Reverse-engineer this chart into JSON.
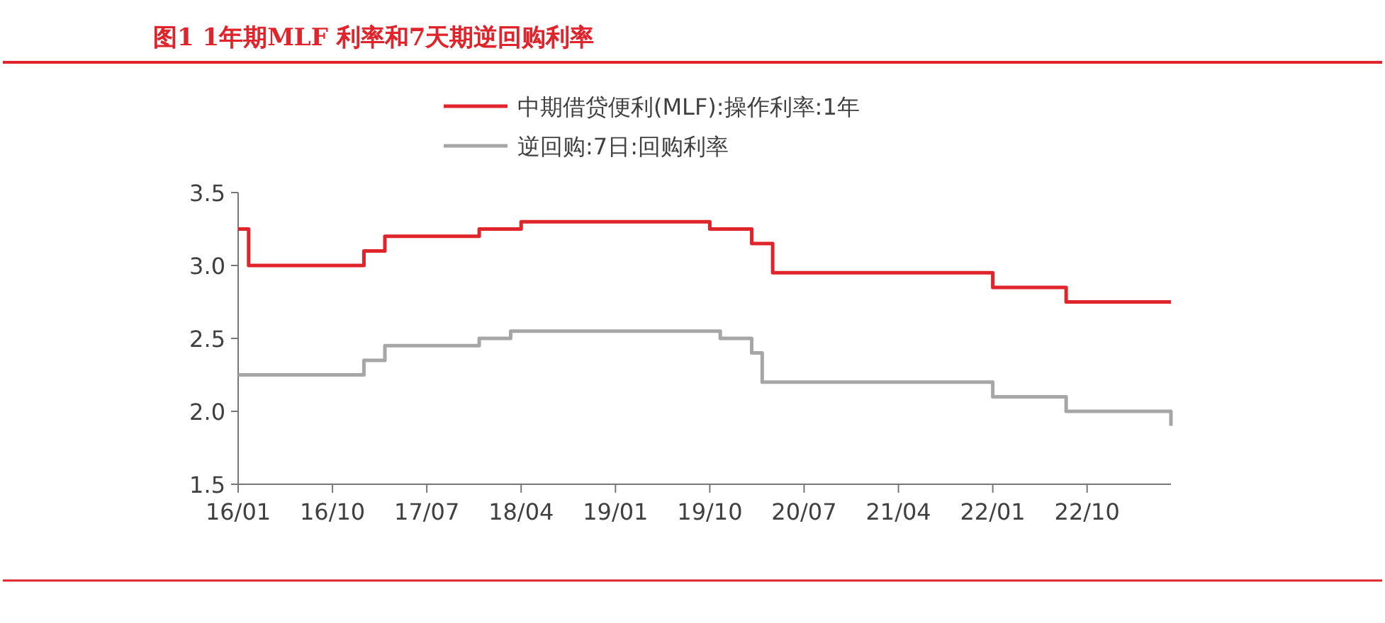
{
  "chart_data": {
    "type": "step",
    "title": "图1  1年期MLF 利率和7天期逆回购利率",
    "categories": [
      "16/01",
      null,
      null,
      null,
      null,
      null,
      null,
      null,
      null,
      "16/10",
      null,
      null,
      null,
      null,
      null,
      null,
      null,
      null,
      "17/07",
      null,
      null,
      null,
      null,
      null,
      null,
      null,
      null,
      "18/04",
      null,
      null,
      null,
      null,
      null,
      null,
      null,
      null,
      "19/01",
      null,
      null,
      null,
      null,
      null,
      null,
      null,
      null,
      "19/10",
      null,
      null,
      null,
      null,
      null,
      null,
      null,
      null,
      "20/07",
      null,
      null,
      null,
      null,
      null,
      null,
      null,
      null,
      "21/04",
      null,
      null,
      null,
      null,
      null,
      null,
      null,
      null,
      "22/01",
      null,
      null,
      null,
      null,
      null,
      null,
      null,
      null,
      "22/10",
      null,
      null,
      null,
      null,
      null,
      null,
      null,
      null
    ],
    "series": [
      {
        "name": "中期借贷便利(MLF):操作利率:1年",
        "color": "#e0242b",
        "values": [
          3.25,
          3.0,
          3.0,
          3.0,
          3.0,
          3.0,
          3.0,
          3.0,
          3.0,
          3.0,
          3.0,
          3.0,
          3.1,
          3.1,
          3.2,
          3.2,
          3.2,
          3.2,
          3.2,
          3.2,
          3.2,
          3.2,
          3.2,
          3.25,
          3.25,
          3.25,
          3.25,
          3.3,
          3.3,
          3.3,
          3.3,
          3.3,
          3.3,
          3.3,
          3.3,
          3.3,
          3.3,
          3.3,
          3.3,
          3.3,
          3.3,
          3.3,
          3.3,
          3.3,
          3.3,
          3.25,
          3.25,
          3.25,
          3.25,
          3.15,
          3.15,
          2.95,
          2.95,
          2.95,
          2.95,
          2.95,
          2.95,
          2.95,
          2.95,
          2.95,
          2.95,
          2.95,
          2.95,
          2.95,
          2.95,
          2.95,
          2.95,
          2.95,
          2.95,
          2.95,
          2.95,
          2.95,
          2.85,
          2.85,
          2.85,
          2.85,
          2.85,
          2.85,
          2.85,
          2.75,
          2.75,
          2.75,
          2.75,
          2.75,
          2.75,
          2.75,
          2.75,
          2.75,
          2.75,
          2.75
        ]
      },
      {
        "name": "逆回购:7日:回购利率",
        "color": "#a6a6a6",
        "values": [
          2.25,
          2.25,
          2.25,
          2.25,
          2.25,
          2.25,
          2.25,
          2.25,
          2.25,
          2.25,
          2.25,
          2.25,
          2.35,
          2.35,
          2.45,
          2.45,
          2.45,
          2.45,
          2.45,
          2.45,
          2.45,
          2.45,
          2.45,
          2.5,
          2.5,
          2.5,
          2.55,
          2.55,
          2.55,
          2.55,
          2.55,
          2.55,
          2.55,
          2.55,
          2.55,
          2.55,
          2.55,
          2.55,
          2.55,
          2.55,
          2.55,
          2.55,
          2.55,
          2.55,
          2.55,
          2.55,
          2.5,
          2.5,
          2.5,
          2.4,
          2.2,
          2.2,
          2.2,
          2.2,
          2.2,
          2.2,
          2.2,
          2.2,
          2.2,
          2.2,
          2.2,
          2.2,
          2.2,
          2.2,
          2.2,
          2.2,
          2.2,
          2.2,
          2.2,
          2.2,
          2.2,
          2.2,
          2.1,
          2.1,
          2.1,
          2.1,
          2.1,
          2.1,
          2.1,
          2.0,
          2.0,
          2.0,
          2.0,
          2.0,
          2.0,
          2.0,
          2.0,
          2.0,
          2.0,
          1.9
        ]
      }
    ],
    "ylim": [
      1.5,
      3.5
    ],
    "yticks": [
      1.5,
      {
        "value": 2,
        "label": "2.0"
      },
      2.5,
      {
        "value": 3,
        "label": "3.0"
      },
      3.5
    ],
    "grid": false,
    "legend": "top",
    "line_style": "solid",
    "marker": "none"
  }
}
